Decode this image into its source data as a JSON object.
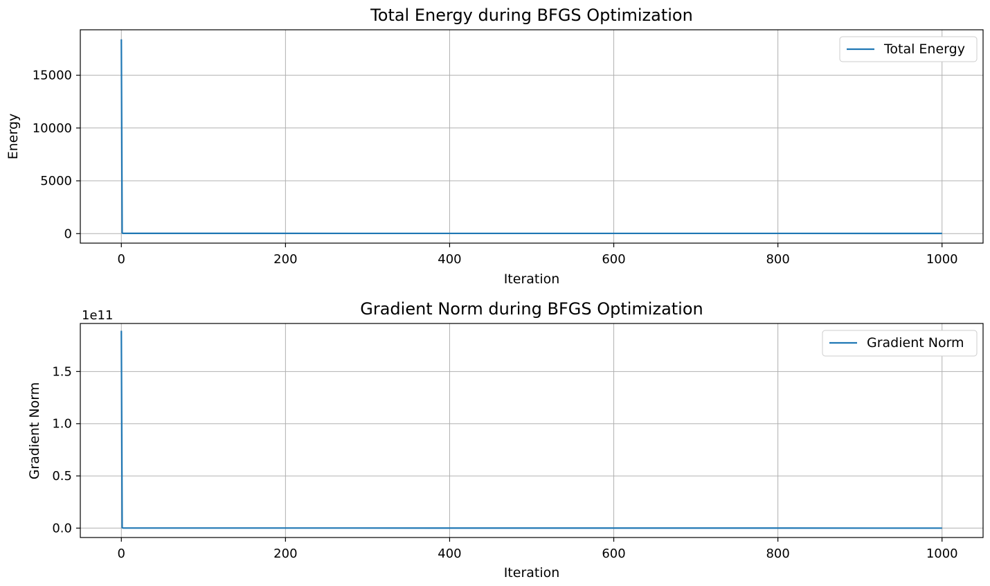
{
  "chart_data": [
    {
      "type": "line",
      "title": "Total Energy during BFGS Optimization",
      "xlabel": "Iteration",
      "ylabel": "Energy",
      "offset_text": "",
      "xlim": [
        -50,
        1050
      ],
      "ylim": [
        -900,
        19300
      ],
      "xticks": [
        0,
        200,
        400,
        600,
        800,
        1000
      ],
      "xtick_labels": [
        "0",
        "200",
        "400",
        "600",
        "800",
        "1000"
      ],
      "yticks": [
        0,
        5000,
        10000,
        15000
      ],
      "ytick_labels": [
        "0",
        "5000",
        "10000",
        "15000"
      ],
      "grid": true,
      "legend_position": "top-right",
      "series": [
        {
          "name": "Total Energy",
          "color": "#1f77b4",
          "x": [
            0,
            1,
            2,
            1000
          ],
          "y": [
            18400,
            60,
            25,
            20
          ]
        }
      ]
    },
    {
      "type": "line",
      "title": "Gradient Norm during BFGS Optimization",
      "xlabel": "Iteration",
      "ylabel": "Gradient Norm",
      "offset_text": "1e11",
      "xlim": [
        -50,
        1050
      ],
      "ylim": [
        -0.09,
        1.96
      ],
      "xticks": [
        0,
        200,
        400,
        600,
        800,
        1000
      ],
      "xtick_labels": [
        "0",
        "200",
        "400",
        "600",
        "800",
        "1000"
      ],
      "yticks": [
        0,
        0.5,
        1.0,
        1.5
      ],
      "ytick_labels": [
        "0.0",
        "0.5",
        "1.0",
        "1.5"
      ],
      "grid": true,
      "legend_position": "top-right",
      "series": [
        {
          "name": "Gradient Norm",
          "color": "#1f77b4",
          "x": [
            0,
            1,
            2,
            1000
          ],
          "y": [
            1.89,
            0.004,
            0.001,
            0.0
          ]
        }
      ]
    }
  ]
}
